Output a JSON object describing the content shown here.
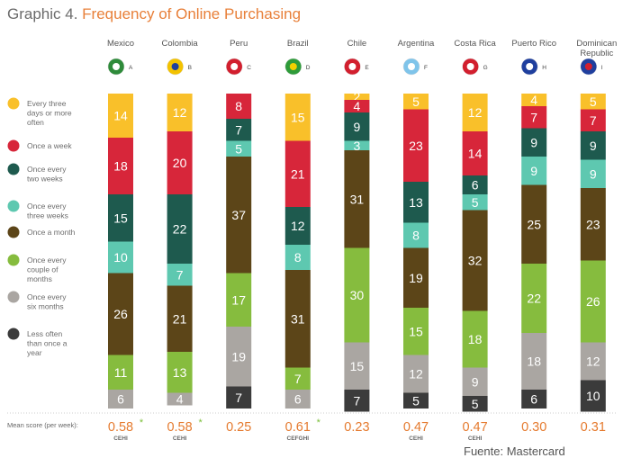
{
  "title": {
    "prefix": "Graphic 4.",
    "main": "Frequency of Online Purchasing"
  },
  "mean_label": "Mean score (per week):",
  "source": "Fuente: Mastercard",
  "colors": {
    "Every three days or more often": "#f9c02a",
    "Once a week": "#d7263a",
    "Once every two weeks": "#1e5a4e",
    "Once every three weeks": "#5ec8b0",
    "Once a month": "#5c4518",
    "Once every couple of months": "#86bc3e",
    "Once every six months": "#aaa6a2",
    "Less often than once a year": "#3b3b3b"
  },
  "legend_lines": [
    [
      "Every three",
      "days or more",
      "often"
    ],
    [
      "Once a week"
    ],
    [
      "Once every",
      "two weeks"
    ],
    [
      "Once every",
      "three weeks"
    ],
    [
      "Once a month"
    ],
    [
      "Once every",
      "couple of",
      "months"
    ],
    [
      "Once every",
      "six months"
    ],
    [
      "Less often",
      "than once a",
      "year"
    ]
  ],
  "countries": [
    {
      "name": [
        "Mexico"
      ],
      "code": "A",
      "score": "0.58",
      "sub": "CEHI",
      "star": true
    },
    {
      "name": [
        "Colombia"
      ],
      "code": "B",
      "score": "0.58",
      "sub": "CEHI",
      "star": true
    },
    {
      "name": [
        "Peru"
      ],
      "code": "C",
      "score": "0.25",
      "sub": "",
      "star": false
    },
    {
      "name": [
        "Brazil"
      ],
      "code": "D",
      "score": "0.61",
      "sub": "CEFGHI",
      "star": true
    },
    {
      "name": [
        "Chile"
      ],
      "code": "E",
      "score": "0.23",
      "sub": "",
      "star": false
    },
    {
      "name": [
        "Argentina"
      ],
      "code": "F",
      "score": "0.47",
      "sub": "CEHI",
      "star": false
    },
    {
      "name": [
        "Costa Rica"
      ],
      "code": "G",
      "score": "0.47",
      "sub": "CEHI",
      "star": false
    },
    {
      "name": [
        "Puerto Rico"
      ],
      "code": "H",
      "score": "0.30",
      "sub": "",
      "star": false
    },
    {
      "name": [
        "Dominican",
        "Republic"
      ],
      "code": "I",
      "score": "0.31",
      "sub": "",
      "star": false
    }
  ],
  "chart_data": {
    "type": "bar",
    "stacked": true,
    "title": "Frequency of Online Purchasing",
    "categories": [
      "Mexico",
      "Colombia",
      "Peru",
      "Brazil",
      "Chile",
      "Argentina",
      "Costa Rica",
      "Puerto Rico",
      "Dominican Republic"
    ],
    "series": [
      {
        "name": "Every three days or more often",
        "values": [
          14,
          12,
          0,
          15,
          2,
          5,
          12,
          4,
          5
        ]
      },
      {
        "name": "Once a week",
        "values": [
          18,
          20,
          8,
          21,
          4,
          23,
          14,
          7,
          7
        ]
      },
      {
        "name": "Once every two weeks",
        "values": [
          15,
          22,
          7,
          12,
          9,
          13,
          6,
          9,
          9
        ]
      },
      {
        "name": "Once every three weeks",
        "values": [
          10,
          7,
          5,
          8,
          3,
          8,
          5,
          9,
          9
        ]
      },
      {
        "name": "Once a month",
        "values": [
          26,
          21,
          37,
          31,
          31,
          19,
          32,
          25,
          23
        ]
      },
      {
        "name": "Once every couple of months",
        "values": [
          11,
          13,
          17,
          7,
          30,
          15,
          18,
          22,
          26
        ]
      },
      {
        "name": "Once every six months",
        "values": [
          6,
          4,
          19,
          6,
          15,
          12,
          9,
          18,
          12
        ]
      },
      {
        "name": "Less often than once a year",
        "values": [
          0,
          0,
          7,
          0,
          7,
          5,
          5,
          6,
          10
        ]
      }
    ],
    "mean_scores": [
      0.58,
      0.58,
      0.25,
      0.61,
      0.23,
      0.47,
      0.47,
      0.3,
      0.31
    ]
  }
}
